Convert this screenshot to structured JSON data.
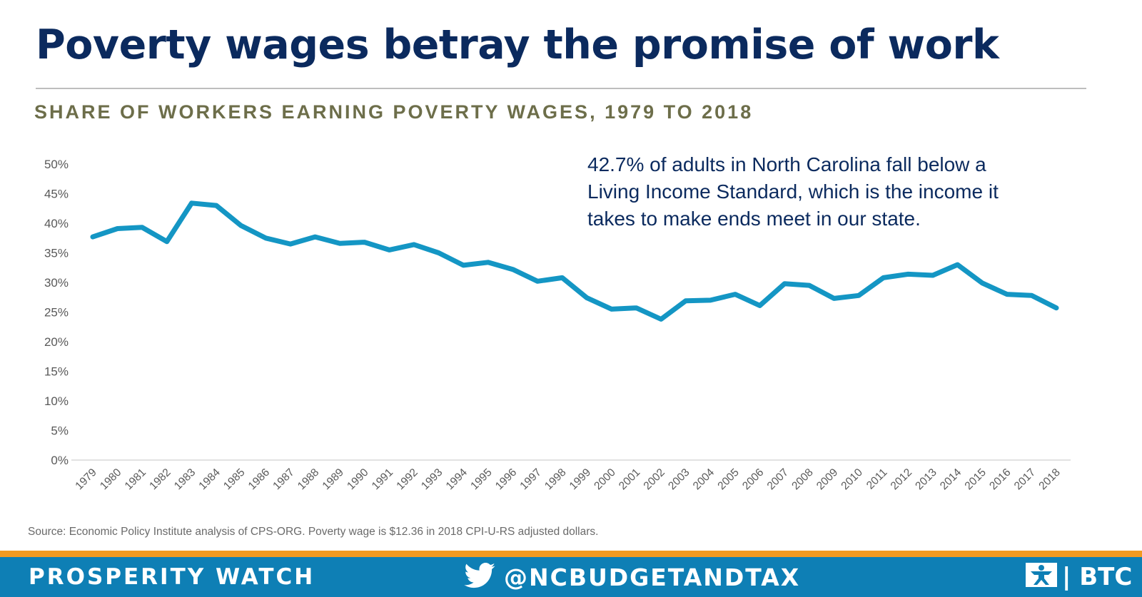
{
  "header": {
    "title": "Poverty wages betray the promise of work",
    "subtitle": "SHARE OF WORKERS EARNING POVERTY WAGES, 1979 TO 2018"
  },
  "annotation": {
    "lines": [
      "42.7% of adults in North Carolina fall below a",
      "Living Income Standard, which is the income it",
      "takes to make ends meet in our state."
    ]
  },
  "source_note": "Source: Economic Policy Institute analysis of CPS-ORG.  Poverty wage is $12.36 in 2018 CPI-U-RS adjusted dollars.",
  "footer": {
    "left_label": "PROSPERITY WATCH",
    "handle": "@NCBUDGETANDTAX",
    "twitter_icon": "twitter-bird-icon",
    "logo_icon": "btc-figure-icon",
    "logo_text": "BTC",
    "logo_separator": "|"
  },
  "colors": {
    "title": "#0b2a5e",
    "subtitle": "#6d6e4a",
    "line": "#1496c4",
    "footer_bg": "#0e7fb5",
    "footer_accent": "#f29a21"
  },
  "chart_data": {
    "type": "line",
    "title": "",
    "xlabel": "",
    "ylabel": "",
    "ylim": [
      0,
      50
    ],
    "y_tick_values": [
      0,
      5,
      10,
      15,
      20,
      25,
      30,
      35,
      40,
      45,
      50
    ],
    "y_tick_labels": [
      "0%",
      "5%",
      "10%",
      "15%",
      "20%",
      "25%",
      "30%",
      "35%",
      "40%",
      "45%",
      "50%"
    ],
    "grid": false,
    "legend": "none",
    "x": [
      "1979",
      "1980",
      "1981",
      "1982",
      "1983",
      "1984",
      "1985",
      "1986",
      "1987",
      "1988",
      "1989",
      "1990",
      "1991",
      "1992",
      "1993",
      "1994",
      "1995",
      "1996",
      "1997",
      "1998",
      "1999",
      "2000",
      "2001",
      "2002",
      "2003",
      "2004",
      "2005",
      "2006",
      "2007",
      "2008",
      "2009",
      "2010",
      "2011",
      "2012",
      "2013",
      "2014",
      "2015",
      "2016",
      "2017",
      "2018"
    ],
    "series": [
      {
        "name": "",
        "values": [
          37.7,
          39.1,
          39.3,
          36.9,
          43.4,
          43.0,
          39.6,
          37.5,
          36.5,
          37.7,
          36.6,
          36.8,
          35.5,
          36.4,
          35.0,
          32.9,
          33.4,
          32.2,
          30.2,
          30.8,
          27.4,
          25.5,
          25.7,
          23.8,
          26.9,
          27.0,
          28.0,
          26.1,
          29.8,
          29.5,
          27.3,
          27.8,
          30.8,
          31.4,
          31.2,
          33.0,
          29.9,
          28.0,
          27.8,
          25.7
        ]
      }
    ]
  }
}
